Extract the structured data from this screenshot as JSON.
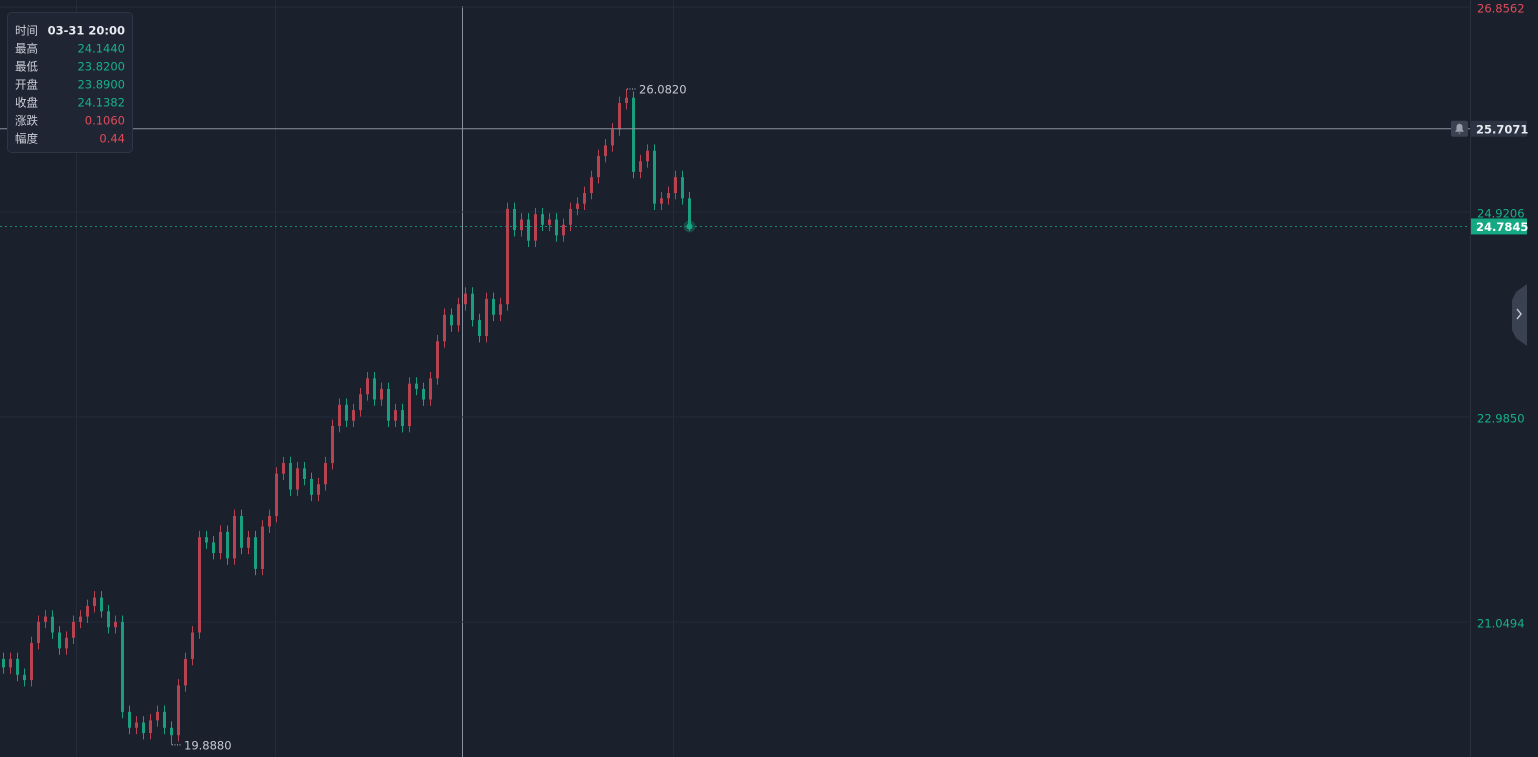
{
  "chart_data": {
    "type": "candlestick",
    "up_color": "#b8424f",
    "down_color": "#1a9e80",
    "ylim": [
      19.774,
      26.923
    ],
    "yticks": [
      26.8562,
      24.9206,
      {
        "value": 22.985,
        "label": "22.9850"
      },
      21.0494
    ],
    "ytick_colors": [
      "#e04b59",
      "#17b08b",
      "#17b08b",
      "#17b08b"
    ],
    "grid": true,
    "open": [
      20.7,
      20.62,
      20.7,
      20.55,
      20.5,
      20.85,
      21.05,
      21.1,
      20.95,
      20.8,
      20.9,
      21.05,
      21.1,
      21.2,
      21.28,
      21.15,
      21.0,
      21.05,
      20.2,
      20.05,
      20.1,
      20.0,
      20.12,
      20.2,
      20.05,
      19.98,
      20.45,
      20.7,
      20.95,
      21.85,
      21.8,
      21.7,
      21.9,
      21.65,
      22.05,
      21.75,
      21.85,
      21.55,
      21.95,
      22.05,
      22.45,
      22.55,
      22.3,
      22.5,
      22.4,
      22.25,
      22.35,
      22.55,
      22.9,
      23.1,
      22.95,
      23.05,
      23.2,
      23.35,
      23.15,
      23.25,
      22.95,
      23.05,
      22.9,
      23.3,
      23.25,
      23.15,
      23.35,
      23.7,
      23.95,
      23.85,
      24.05,
      24.15,
      23.9,
      23.75,
      24.1,
      23.95,
      24.05,
      24.95,
      24.75,
      24.85,
      24.65,
      24.9,
      24.8,
      24.85,
      24.7,
      24.8,
      24.95,
      25.0,
      25.1,
      25.25,
      25.45,
      25.55,
      25.7,
      25.95,
      26.0,
      25.3,
      25.4,
      25.5,
      25.0,
      25.05,
      25.1,
      25.25,
      25.05
    ],
    "high": [
      20.76,
      20.76,
      20.76,
      20.61,
      20.91,
      21.11,
      21.16,
      21.16,
      21.01,
      20.96,
      21.11,
      21.16,
      21.26,
      21.34,
      21.34,
      21.21,
      21.11,
      21.11,
      20.26,
      20.16,
      20.16,
      20.18,
      20.26,
      20.26,
      20.11,
      20.51,
      20.76,
      21.01,
      21.91,
      21.91,
      21.86,
      21.96,
      21.96,
      22.11,
      22.11,
      21.91,
      21.91,
      22.01,
      22.11,
      22.51,
      22.61,
      22.61,
      22.56,
      22.56,
      22.46,
      22.41,
      22.61,
      22.96,
      23.16,
      23.16,
      23.11,
      23.26,
      23.41,
      23.41,
      23.31,
      23.31,
      23.11,
      23.11,
      23.36,
      23.36,
      23.31,
      23.41,
      23.76,
      24.01,
      24.01,
      24.11,
      24.21,
      24.21,
      23.96,
      24.16,
      24.16,
      24.11,
      25.01,
      25.01,
      24.91,
      24.91,
      24.96,
      24.96,
      24.91,
      24.91,
      24.86,
      25.01,
      25.06,
      25.16,
      25.31,
      25.51,
      25.61,
      25.76,
      26.01,
      26.082,
      26.06,
      25.46,
      25.56,
      25.56,
      25.11,
      25.16,
      25.31,
      25.31,
      25.11
    ],
    "low": [
      20.56,
      20.56,
      20.49,
      20.44,
      20.44,
      20.79,
      20.99,
      20.89,
      20.74,
      20.74,
      20.84,
      20.99,
      21.04,
      21.14,
      21.09,
      20.94,
      20.94,
      20.14,
      19.99,
      19.99,
      19.94,
      19.94,
      20.06,
      19.99,
      19.888,
      19.92,
      20.39,
      20.64,
      20.89,
      21.74,
      21.64,
      21.64,
      21.59,
      21.59,
      21.69,
      21.69,
      21.49,
      21.49,
      21.89,
      21.99,
      22.39,
      22.24,
      22.24,
      22.34,
      22.19,
      22.19,
      22.29,
      22.49,
      22.84,
      22.89,
      22.89,
      22.99,
      23.14,
      23.09,
      23.09,
      22.89,
      22.89,
      22.84,
      22.84,
      23.19,
      23.09,
      23.09,
      23.29,
      23.64,
      23.79,
      23.79,
      23.99,
      23.84,
      23.69,
      23.69,
      23.89,
      23.89,
      23.99,
      24.69,
      24.69,
      24.59,
      24.59,
      24.74,
      24.74,
      24.64,
      24.64,
      24.74,
      24.89,
      24.94,
      25.04,
      25.19,
      25.39,
      25.49,
      25.64,
      25.89,
      25.24,
      25.24,
      25.34,
      24.94,
      24.94,
      24.99,
      25.04,
      24.99,
      24.74
    ],
    "close": [
      20.62,
      20.7,
      20.55,
      20.5,
      20.85,
      21.05,
      21.1,
      20.95,
      20.8,
      20.9,
      21.05,
      21.1,
      21.2,
      21.28,
      21.15,
      21.0,
      21.05,
      20.2,
      20.05,
      20.1,
      20.0,
      20.12,
      20.2,
      20.05,
      19.98,
      20.45,
      20.7,
      20.95,
      21.85,
      21.8,
      21.7,
      21.9,
      21.65,
      22.05,
      21.75,
      21.85,
      21.55,
      21.95,
      22.05,
      22.45,
      22.55,
      22.3,
      22.5,
      22.4,
      22.25,
      22.35,
      22.55,
      22.9,
      23.1,
      22.95,
      23.05,
      23.2,
      23.35,
      23.15,
      23.25,
      22.95,
      23.05,
      22.9,
      23.3,
      23.25,
      23.15,
      23.35,
      23.7,
      23.95,
      23.85,
      24.05,
      24.15,
      23.9,
      23.75,
      24.1,
      23.95,
      24.05,
      24.95,
      24.75,
      24.85,
      24.65,
      24.9,
      24.8,
      24.85,
      24.7,
      24.8,
      24.95,
      25.0,
      25.1,
      25.25,
      25.45,
      25.55,
      25.7,
      25.95,
      26.0,
      25.3,
      25.4,
      25.5,
      25.0,
      25.05,
      25.1,
      25.25,
      25.05,
      24.7845
    ],
    "annotations": [
      {
        "label": "26.0820",
        "value": 26.082
      },
      {
        "label": "19.8880",
        "value": 19.888
      }
    ],
    "crosshair": {
      "value": 25.7071,
      "label": "25.7071"
    },
    "last_price": {
      "value": 24.7845,
      "label": "24.7845",
      "color": "#14a883"
    },
    "tooltip": [
      {
        "label": "时间",
        "value": "03-31 20:00",
        "color": "#e6e9ef"
      },
      {
        "label": "最高",
        "value": "24.1440",
        "color": "#17b08b"
      },
      {
        "label": "最低",
        "value": "23.8200",
        "color": "#17b08b"
      },
      {
        "label": "开盘",
        "value": "23.8900",
        "color": "#17b08b"
      },
      {
        "label": "收盘",
        "value": "24.1382",
        "color": "#17b08b"
      },
      {
        "label": "涨跌",
        "value": "0.1060",
        "color": "#e04b59"
      },
      {
        "label": "幅度",
        "value": "0.44",
        "color": "#e04b59"
      }
    ]
  }
}
